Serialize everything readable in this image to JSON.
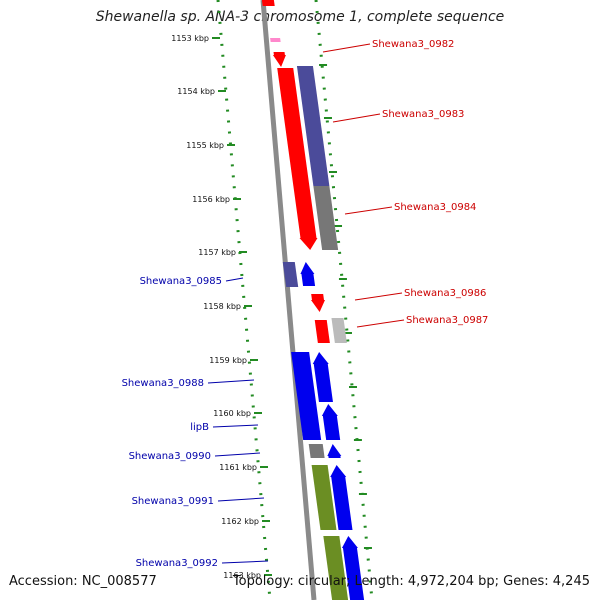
{
  "title": "Shewanella sp. ANA-3 chromosome 1, complete sequence",
  "accession": "Accession: NC_008577",
  "topology": "Topology: circular; Length: 4,972,204 bp; Genes: 4,245",
  "colors": {
    "backbone": "#8a8a8a",
    "ruler": "#228b22",
    "red": "#ff0000",
    "darkred": "#cc0000",
    "navy": "#4b4b9a",
    "blue": "#0000ee",
    "gray": "#777777",
    "lightgray": "#bbbbbb",
    "olive": "#6b8e23",
    "pink": "#ff88cc",
    "label_red": "#cc0000",
    "label_blue": "#0000aa"
  },
  "ticks": [
    "1153 kbp",
    "1154 kbp",
    "1155 kbp",
    "1156 kbp",
    "1157 kbp",
    "1158 kbp",
    "1159 kbp",
    "1160 kbp",
    "1161 kbp",
    "1162 kbp",
    "1163 kbp"
  ],
  "gene_labels": [
    {
      "text": "Shewana3_0982",
      "color": "red"
    },
    {
      "text": "Shewana3_0983",
      "color": "red"
    },
    {
      "text": "Shewana3_0984",
      "color": "red"
    },
    {
      "text": "Shewana3_0985",
      "color": "blue"
    },
    {
      "text": "Shewana3_0986",
      "color": "red"
    },
    {
      "text": "Shewana3_0987",
      "color": "red"
    },
    {
      "text": "Shewana3_0988",
      "color": "blue"
    },
    {
      "text": "lipB",
      "color": "blue"
    },
    {
      "text": "Shewana3_0990",
      "color": "blue"
    },
    {
      "text": "Shewana3_0991",
      "color": "blue"
    },
    {
      "text": "Shewana3_0992",
      "color": "blue"
    }
  ]
}
